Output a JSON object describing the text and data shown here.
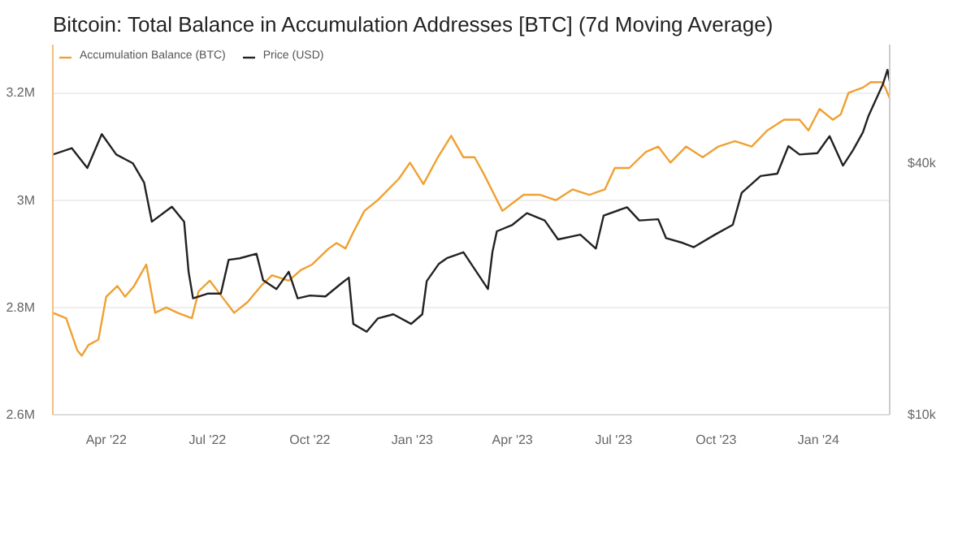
{
  "chart_data": {
    "type": "line",
    "title": "Bitcoin: Total Balance in Accumulation Addresses [BTC] (7d Moving Average)",
    "xlim": [
      "2022-02-12",
      "2024-03-05"
    ],
    "xticks": [
      {
        "value": "2022-04-01",
        "label": "Apr '22"
      },
      {
        "value": "2022-07-01",
        "label": "Jul '22"
      },
      {
        "value": "2022-10-01",
        "label": "Oct '22"
      },
      {
        "value": "2023-01-01",
        "label": "Jan '23"
      },
      {
        "value": "2023-04-01",
        "label": "Apr '23"
      },
      {
        "value": "2023-07-01",
        "label": "Jul '23"
      },
      {
        "value": "2023-10-01",
        "label": "Oct '23"
      },
      {
        "value": "2024-01-01",
        "label": "Jan '24"
      }
    ],
    "ylim": [
      2600000,
      3290000
    ],
    "yticks": [
      {
        "value": 2600000,
        "label": "2.6M"
      },
      {
        "value": 2800000,
        "label": "2.8M"
      },
      {
        "value": 3000000,
        "label": "3M"
      },
      {
        "value": 3200000,
        "label": "3.2M"
      }
    ],
    "y2lim": [
      10000,
      77000
    ],
    "y2ticks": [
      {
        "value": 10000,
        "label": "$10k"
      },
      {
        "value": 40000,
        "label": "$40k"
      }
    ],
    "log": "y2",
    "grid": "y",
    "legend": "top left",
    "series": [
      {
        "name": "Accumulation Balance (BTC)",
        "color": "#f0a030",
        "x": [
          "2022-02-12",
          "2022-02-24",
          "2022-03-06",
          "2022-03-10",
          "2022-03-16",
          "2022-03-25",
          "2022-04-01",
          "2022-04-11",
          "2022-04-18",
          "2022-04-26",
          "2022-05-07",
          "2022-05-15",
          "2022-05-25",
          "2022-06-04",
          "2022-06-17",
          "2022-06-23",
          "2022-07-03",
          "2022-07-14",
          "2022-07-25",
          "2022-08-06",
          "2022-08-18",
          "2022-08-28",
          "2022-09-12",
          "2022-09-23",
          "2022-10-03",
          "2022-10-18",
          "2022-10-25",
          "2022-11-02",
          "2022-11-09",
          "2022-11-19",
          "2022-12-01",
          "2022-12-20",
          "2022-12-30",
          "2023-01-11",
          "2023-01-24",
          "2023-02-05",
          "2023-02-16",
          "2023-02-26",
          "2023-03-06",
          "2023-03-23",
          "2023-04-11",
          "2023-04-26",
          "2023-05-10",
          "2023-05-25",
          "2023-06-09",
          "2023-06-23",
          "2023-07-02",
          "2023-07-15",
          "2023-07-30",
          "2023-08-10",
          "2023-08-21",
          "2023-09-04",
          "2023-09-19",
          "2023-10-03",
          "2023-10-18",
          "2023-11-02",
          "2023-11-16",
          "2023-12-01",
          "2023-12-15",
          "2023-12-23",
          "2024-01-02",
          "2024-01-14",
          "2024-01-21",
          "2024-01-28",
          "2024-02-10",
          "2024-02-17",
          "2024-02-27",
          "2024-03-01",
          "2024-03-05"
        ],
        "values": [
          2790000,
          2780000,
          2720000,
          2710000,
          2730000,
          2740000,
          2820000,
          2840000,
          2820000,
          2840000,
          2880000,
          2790000,
          2800000,
          2790000,
          2780000,
          2830000,
          2850000,
          2820000,
          2790000,
          2810000,
          2840000,
          2860000,
          2850000,
          2870000,
          2880000,
          2910000,
          2920000,
          2910000,
          2940000,
          2980000,
          3000000,
          3040000,
          3070000,
          3030000,
          3080000,
          3120000,
          3080000,
          3080000,
          3050000,
          2980000,
          3010000,
          3010000,
          3000000,
          3020000,
          3010000,
          3020000,
          3060000,
          3060000,
          3090000,
          3100000,
          3070000,
          3100000,
          3080000,
          3100000,
          3110000,
          3100000,
          3130000,
          3150000,
          3150000,
          3130000,
          3170000,
          3150000,
          3160000,
          3200000,
          3210000,
          3220000,
          3220000,
          3210000,
          3190000
        ]
      },
      {
        "name": "Price (USD)",
        "color": "#222222",
        "axis": "y2",
        "x": [
          "2022-02-12",
          "2022-03-01",
          "2022-03-15",
          "2022-03-28",
          "2022-04-10",
          "2022-04-25",
          "2022-05-05",
          "2022-05-12",
          "2022-05-30",
          "2022-06-10",
          "2022-06-14",
          "2022-06-18",
          "2022-07-01",
          "2022-07-13",
          "2022-07-20",
          "2022-07-30",
          "2022-08-14",
          "2022-08-20",
          "2022-09-01",
          "2022-09-12",
          "2022-09-20",
          "2022-10-01",
          "2022-10-15",
          "2022-10-29",
          "2022-11-05",
          "2022-11-09",
          "2022-11-21",
          "2022-12-01",
          "2022-12-15",
          "2022-12-31",
          "2023-01-10",
          "2023-01-14",
          "2023-01-25",
          "2023-02-01",
          "2023-02-16",
          "2023-03-10",
          "2023-03-14",
          "2023-03-18",
          "2023-04-01",
          "2023-04-14",
          "2023-04-30",
          "2023-05-12",
          "2023-06-01",
          "2023-06-15",
          "2023-06-22",
          "2023-07-13",
          "2023-07-24",
          "2023-08-10",
          "2023-08-17",
          "2023-09-01",
          "2023-09-11",
          "2023-09-30",
          "2023-10-16",
          "2023-10-24",
          "2023-11-10",
          "2023-11-25",
          "2023-12-05",
          "2023-12-15",
          "2023-12-31",
          "2024-01-11",
          "2024-01-23",
          "2024-02-01",
          "2024-02-10",
          "2024-02-15",
          "2024-02-28",
          "2024-03-03",
          "2024-03-05"
        ],
        "values": [
          42000,
          43500,
          39000,
          47000,
          42000,
          40000,
          36000,
          29000,
          31500,
          29000,
          22000,
          19000,
          19500,
          19500,
          23500,
          23700,
          24300,
          21000,
          20000,
          22000,
          19000,
          19300,
          19200,
          20600,
          21300,
          16500,
          15800,
          17000,
          17400,
          16500,
          17400,
          20900,
          23000,
          23700,
          24500,
          20000,
          24500,
          27500,
          28500,
          30400,
          29200,
          26300,
          27000,
          25000,
          30000,
          31400,
          29200,
          29400,
          26500,
          25800,
          25200,
          27000,
          28500,
          34000,
          37300,
          37800,
          44000,
          42000,
          42300,
          46500,
          39500,
          43000,
          47500,
          52000,
          62000,
          67000,
          63000
        ]
      }
    ]
  }
}
